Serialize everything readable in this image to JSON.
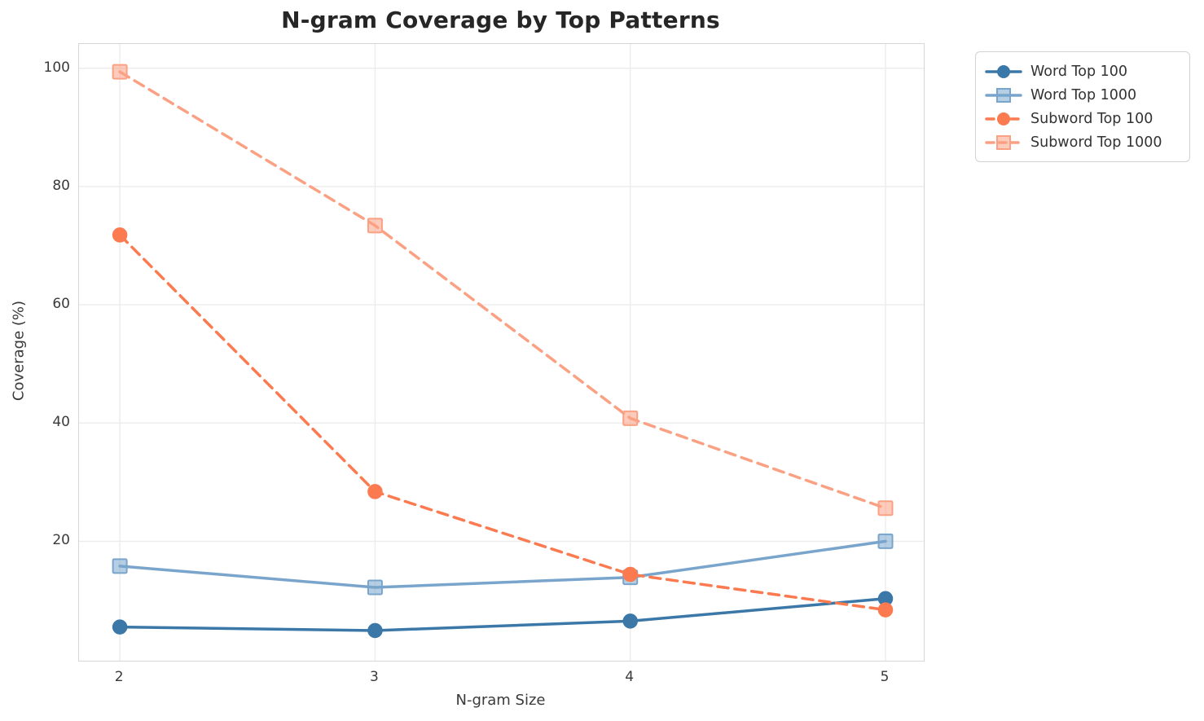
{
  "chart_data": {
    "type": "line",
    "title": "N-gram Coverage by Top Patterns",
    "xlabel": "N-gram Size",
    "ylabel": "Coverage (%)",
    "x": [
      2,
      3,
      4,
      5
    ],
    "x_ticks": [
      "2",
      "3",
      "4",
      "5"
    ],
    "y_ticks": [
      "20",
      "40",
      "60",
      "80",
      "100"
    ],
    "y_tick_values": [
      20,
      40,
      60,
      80,
      100
    ],
    "xlim": [
      1.84,
      5.15
    ],
    "ylim": [
      -0.2,
      104.1
    ],
    "grid": true,
    "legend_position": "outside-upper-right",
    "series": [
      {
        "name": "Word Top 100",
        "values": [
          5.5,
          4.9,
          6.5,
          10.3
        ],
        "color": "#3b78a8",
        "linestyle": "solid",
        "marker": "circle"
      },
      {
        "name": "Word Top 1000",
        "values": [
          15.8,
          12.2,
          13.9,
          20.0
        ],
        "color": "#79a5cc",
        "linestyle": "solid",
        "marker": "square"
      },
      {
        "name": "Subword Top 100",
        "values": [
          71.8,
          28.4,
          14.4,
          8.4
        ],
        "color": "#fb7a50",
        "linestyle": "dashed",
        "marker": "circle"
      },
      {
        "name": "Subword Top 1000",
        "values": [
          99.4,
          73.4,
          40.8,
          25.6
        ],
        "color": "#fba183",
        "linestyle": "dashed",
        "marker": "square"
      }
    ],
    "style": {
      "grid_color": "#ececec",
      "spine_color": "#d6d6d6",
      "tick_color": "#3a3a3a",
      "title_color": "#262626"
    }
  }
}
